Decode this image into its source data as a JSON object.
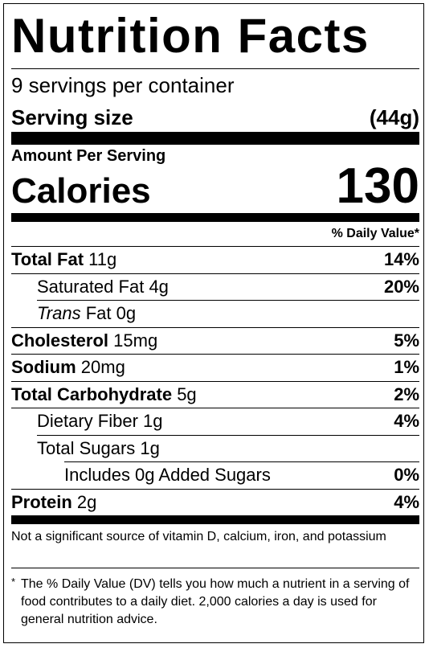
{
  "title": "Nutrition Facts",
  "servings": "9 servings per container",
  "serving_size": {
    "label": "Serving size",
    "value": "(44g)"
  },
  "amount_per_serving": "Amount Per Serving",
  "calories": {
    "label": "Calories",
    "value": "130"
  },
  "daily_value_header": "% Daily Value*",
  "nutrients": [
    {
      "name": "Total Fat",
      "amount": "11g",
      "dv": "14%"
    },
    {
      "name": "Saturated Fat",
      "amount": "4g",
      "dv": "20%"
    },
    {
      "name_prefix": "Trans",
      "name": "Fat",
      "amount": "0g"
    },
    {
      "name": "Cholesterol",
      "amount": "15mg",
      "dv": "5%"
    },
    {
      "name": "Sodium",
      "amount": "20mg",
      "dv": "1%"
    },
    {
      "name": "Total Carbohydrate",
      "amount": "5g",
      "dv": "2%"
    },
    {
      "name": "Dietary Fiber",
      "amount": "1g",
      "dv": "4%"
    },
    {
      "name": "Total Sugars",
      "amount": "1g"
    },
    {
      "name": "Includes 0g Added Sugars",
      "dv": "0%"
    },
    {
      "name": "Protein",
      "amount": "2g",
      "dv": "4%"
    }
  ],
  "vitamin_note": "Not a significant source of vitamin D, calcium, iron, and potassium",
  "footnote": {
    "mark": "*",
    "text": "The % Daily Value (DV) tells you how much a nutrient in a serving of food contributes to a daily diet. 2,000 calories a day is used for general nutrition advice."
  }
}
